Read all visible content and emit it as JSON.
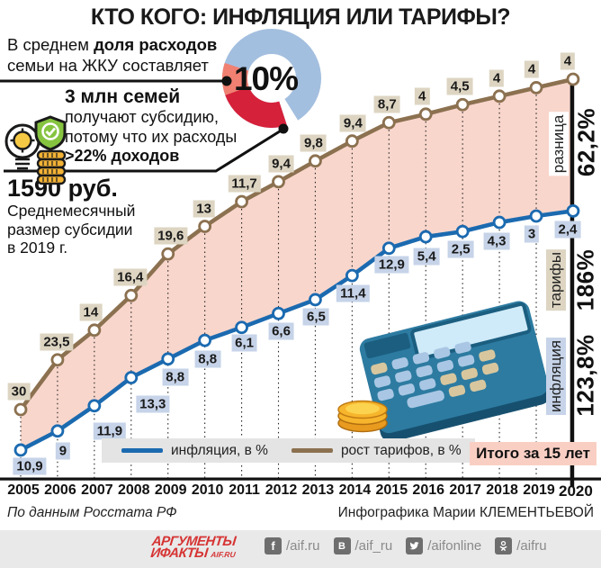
{
  "title": "КТО КОГО: ИНФЛЯЦИЯ ИЛИ ТАРИФЫ?",
  "intro": {
    "line1_prefix": "В среднем ",
    "line1_bold": "доля расходов",
    "line2": "семьи на ЖКУ составляет",
    "donut": {
      "value_label": "10%",
      "colors": {
        "main": "#a3bfdf",
        "share": "#f08072",
        "threshold": "#d6213a"
      }
    },
    "subsidy_title": "3 млн семей",
    "subsidy_line1": "получают субсидию,",
    "subsidy_line2": "потому что их расходы",
    "subsidy_line3": ">22% доходов",
    "subsidy_amount": "1590 руб.",
    "subsidy_desc1": "Среднемесячный",
    "subsidy_desc2": "размер субсидии",
    "subsidy_desc3": "в 2019 г."
  },
  "chart_data": {
    "type": "line",
    "plot_mode": "cumulative-sum of annual percentages",
    "years": [
      "2005",
      "2006",
      "2007",
      "2008",
      "2009",
      "2010",
      "2011",
      "2012",
      "2013",
      "2014",
      "2015",
      "2016",
      "2017",
      "2018",
      "2019",
      "2020"
    ],
    "series": [
      {
        "name": "рост тарифов, в %",
        "color": "#8c7150",
        "annual_percent": [
          30,
          23.5,
          14,
          16.4,
          19.6,
          13,
          11.7,
          9.4,
          9.8,
          9.4,
          8.7,
          4,
          4.5,
          4,
          4,
          4
        ],
        "point_labels": [
          "30",
          "23,5",
          "14",
          "16,4",
          "19,6",
          "13",
          "11,7",
          "9,4",
          "9,8",
          "9,4",
          "8,7",
          "4",
          "4,5",
          "4",
          "4",
          "4"
        ],
        "cumulative_total": "186%"
      },
      {
        "name": "инфляция, в %",
        "color": "#1b6ab0",
        "annual_percent": [
          10.9,
          9,
          11.9,
          13.3,
          8.8,
          8.8,
          6.1,
          6.6,
          6.5,
          11.4,
          12.9,
          5.4,
          2.5,
          4.3,
          3,
          2.4
        ],
        "point_labels": [
          "10,9",
          "9",
          "11,9",
          "13,3",
          "8,8",
          "8,8",
          "6,1",
          "6,6",
          "6,5",
          "11,4",
          "12,9",
          "5,4",
          "2,5",
          "4,3",
          "3",
          "2,4"
        ],
        "cumulative_total": "123,8%"
      }
    ],
    "difference_total": "62,2%",
    "area_fill": "#f8d6cc",
    "legend_position": "bottom"
  },
  "right_axis": {
    "diff_name": "разница",
    "diff_value": "62,2%",
    "tariff_name": "тарифы",
    "tariff_value": "186%",
    "inflation_name": "инфляция",
    "inflation_value": "123,8%",
    "total_caption": "Итого за 15 лет"
  },
  "legend": [
    {
      "label": "инфляция, в %",
      "color": "#1b6ab0"
    },
    {
      "label": "рост тарифов, в %",
      "color": "#8c7150"
    }
  ],
  "footer": {
    "source": "По данным Росстата РФ",
    "credit": "Инфографика Марии КЛЕМЕНТЬЕВОЙ",
    "logo_line1": "АРГУМЕНТЫ",
    "logo_line2": "ИФАКТЫ",
    "logo_suffix": "AIF.RU",
    "social": [
      {
        "icon": "facebook-icon",
        "handle": "/aif.ru"
      },
      {
        "icon": "vk-icon",
        "handle": "/aif_ru"
      },
      {
        "icon": "twitter-icon",
        "handle": "/aifonline"
      },
      {
        "icon": "odnoklassniki-icon",
        "handle": "/aifru"
      }
    ]
  }
}
